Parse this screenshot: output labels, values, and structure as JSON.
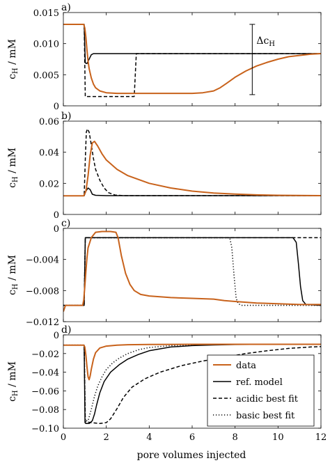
{
  "figure": {
    "xlabel": "pore volumes injected",
    "legend": {
      "entries": [
        {
          "label": "data",
          "style": "data"
        },
        {
          "label": "ref. model",
          "style": "solid"
        },
        {
          "label": "acidic best fit",
          "style": "dashed"
        },
        {
          "label": "basic best fit",
          "style": "dotted"
        }
      ]
    },
    "colors": {
      "data": "#c8621b",
      "model": "#000000"
    }
  },
  "chart_data": [
    {
      "panel": "a)",
      "type": "line",
      "ylabel": "c_H / mM",
      "xlim": [
        0,
        12
      ],
      "ylim": [
        0,
        0.015
      ],
      "yticks": [
        "0",
        "0.005",
        "0.010",
        "0.015"
      ],
      "annotation": "Δc_H",
      "annotation_x": 8.8,
      "annotation_range": [
        0.0018,
        0.0131
      ],
      "series": [
        {
          "style": "data",
          "x": [
            0,
            0.95,
            1.0,
            1.05,
            1.1,
            1.15,
            1.2,
            1.3,
            1.4,
            1.5,
            1.7,
            2,
            2.5,
            3,
            4,
            5,
            6,
            6.5,
            7,
            7.3,
            7.6,
            8,
            8.5,
            9,
            9.5,
            10,
            10.5,
            11,
            11.5,
            12
          ],
          "y": [
            0.0131,
            0.0131,
            0.0125,
            0.011,
            0.009,
            0.0072,
            0.006,
            0.0045,
            0.0035,
            0.0029,
            0.0024,
            0.0021,
            0.002,
            0.002,
            0.002,
            0.002,
            0.002,
            0.0021,
            0.0024,
            0.0029,
            0.0036,
            0.0046,
            0.0056,
            0.0064,
            0.007,
            0.0075,
            0.0079,
            0.0081,
            0.0083,
            0.0084
          ]
        },
        {
          "style": "solid",
          "x": [
            0,
            0.97,
            1.02,
            1.1,
            1.2,
            1.3,
            1.4,
            1.6,
            2,
            12
          ],
          "y": [
            0.0131,
            0.0131,
            0.0069,
            0.0068,
            0.0075,
            0.0082,
            0.0084,
            0.0084,
            0.0084,
            0.0084
          ]
        },
        {
          "style": "dashed",
          "x": [
            0,
            0.97,
            1.02,
            1.1,
            3.3,
            3.4,
            3.5,
            12
          ],
          "y": [
            0.0131,
            0.0131,
            0.0015,
            0.0015,
            0.0015,
            0.0084,
            0.0084,
            0.0084
          ]
        }
      ]
    },
    {
      "panel": "b)",
      "type": "line",
      "ylabel": "c_H / mM",
      "xlim": [
        0,
        12
      ],
      "ylim": [
        0,
        0.06
      ],
      "yticks": [
        "0",
        "0.02",
        "0.04",
        "0.06"
      ],
      "series": [
        {
          "style": "data",
          "x": [
            0,
            0.95,
            1.05,
            1.15,
            1.25,
            1.35,
            1.45,
            1.6,
            1.8,
            2,
            2.5,
            3,
            4,
            5,
            6,
            7,
            8,
            9,
            10,
            11,
            12
          ],
          "y": [
            0.012,
            0.012,
            0.015,
            0.025,
            0.038,
            0.046,
            0.047,
            0.044,
            0.039,
            0.035,
            0.029,
            0.025,
            0.02,
            0.017,
            0.015,
            0.0138,
            0.0131,
            0.0126,
            0.0123,
            0.0122,
            0.0121
          ]
        },
        {
          "style": "solid",
          "x": [
            0,
            0.97,
            1.05,
            1.15,
            1.25,
            1.35,
            1.5,
            2,
            12
          ],
          "y": [
            0.012,
            0.012,
            0.015,
            0.017,
            0.016,
            0.013,
            0.0123,
            0.0121,
            0.0121
          ]
        },
        {
          "style": "dashed",
          "x": [
            0,
            0.97,
            1.02,
            1.07,
            1.12,
            1.2,
            1.3,
            1.4,
            1.5,
            1.7,
            1.9,
            2.1,
            2.4,
            2.8,
            12
          ],
          "y": [
            0.012,
            0.012,
            0.035,
            0.053,
            0.055,
            0.053,
            0.045,
            0.036,
            0.029,
            0.022,
            0.017,
            0.014,
            0.0125,
            0.0121,
            0.0121
          ]
        }
      ]
    },
    {
      "panel": "c)",
      "type": "line",
      "ylabel": "c_H / mM",
      "xlim": [
        0,
        12
      ],
      "ylim": [
        -0.012,
        0
      ],
      "yticks": [
        "-0.012",
        "-0.008",
        "-0.004",
        "0"
      ],
      "series": [
        {
          "style": "data",
          "x": [
            0,
            0.1,
            0.5,
            0.9,
            0.95,
            1.0,
            1.05,
            1.1,
            1.15,
            1.3,
            1.5,
            1.8,
            2.2,
            2.45,
            2.55,
            2.7,
            2.9,
            3.1,
            3.3,
            3.6,
            4,
            4.5,
            5,
            6,
            7,
            7.5,
            8,
            8.5,
            9,
            10,
            11,
            12
          ],
          "y": [
            -0.0107,
            -0.0099,
            -0.0099,
            -0.0099,
            -0.0092,
            -0.0075,
            -0.0055,
            -0.0038,
            -0.0025,
            -0.0012,
            -0.0005,
            -0.0004,
            -0.0004,
            -0.0005,
            -0.0012,
            -0.0035,
            -0.0058,
            -0.0072,
            -0.008,
            -0.0085,
            -0.0087,
            -0.0088,
            -0.0089,
            -0.009,
            -0.0091,
            -0.0093,
            -0.0094,
            -0.0095,
            -0.0096,
            -0.0097,
            -0.0098,
            -0.0098
          ]
        },
        {
          "style": "solid",
          "x": [
            0,
            0.97,
            1.02,
            10.7,
            10.85,
            10.95,
            11.05,
            11.15,
            11.3,
            12
          ],
          "y": [
            -0.0099,
            -0.0099,
            -0.0012,
            -0.0012,
            -0.0018,
            -0.0045,
            -0.0075,
            -0.0093,
            -0.0098,
            -0.0099
          ]
        },
        {
          "style": "dashed",
          "x": [
            0,
            0.97,
            1.02,
            12
          ],
          "y": [
            -0.0099,
            -0.0099,
            -0.0012,
            -0.0012
          ]
        },
        {
          "style": "dotted",
          "x": [
            0,
            0.97,
            1.02,
            7.75,
            7.85,
            7.95,
            8.05,
            8.15,
            8.3,
            12
          ],
          "y": [
            -0.0099,
            -0.0099,
            -0.0012,
            -0.0012,
            -0.0025,
            -0.006,
            -0.009,
            -0.0097,
            -0.0099,
            -0.0099
          ]
        }
      ]
    },
    {
      "panel": "d)",
      "type": "line",
      "ylabel": "c_H / mM",
      "xlabel": "pore volumes injected",
      "xlim": [
        0,
        12
      ],
      "ylim": [
        -0.1,
        0
      ],
      "xticks": [
        "0",
        "2",
        "4",
        "6",
        "8",
        "10",
        "12"
      ],
      "yticks": [
        "-0.10",
        "-0.08",
        "-0.06",
        "-0.04",
        "-0.02",
        "0"
      ],
      "legend_position": "bottom-right",
      "series": [
        {
          "style": "data",
          "x": [
            0,
            0.95,
            1.0,
            1.05,
            1.1,
            1.15,
            1.2,
            1.25,
            1.3,
            1.4,
            1.5,
            1.7,
            2,
            2.5,
            3,
            4,
            6,
            8,
            10,
            12
          ],
          "y": [
            -0.011,
            -0.011,
            -0.013,
            -0.022,
            -0.034,
            -0.045,
            -0.048,
            -0.044,
            -0.037,
            -0.026,
            -0.019,
            -0.014,
            -0.012,
            -0.011,
            -0.0105,
            -0.0102,
            -0.0101,
            -0.0101,
            -0.0101,
            -0.0101
          ]
        },
        {
          "style": "solid",
          "x": [
            0,
            0.97,
            1.01,
            1.05,
            1.2,
            1.35,
            1.45,
            1.55,
            1.7,
            1.9,
            2.2,
            2.6,
            3,
            3.5,
            4,
            5,
            6,
            7,
            8,
            10,
            12
          ],
          "y": [
            -0.011,
            -0.011,
            -0.094,
            -0.095,
            -0.095,
            -0.092,
            -0.085,
            -0.075,
            -0.062,
            -0.05,
            -0.04,
            -0.032,
            -0.026,
            -0.021,
            -0.017,
            -0.013,
            -0.0115,
            -0.0108,
            -0.0104,
            -0.0101,
            -0.0101
          ]
        },
        {
          "style": "dashed",
          "x": [
            0,
            0.97,
            1.02,
            1.3,
            1.7,
            2,
            2.2,
            2.5,
            2.8,
            3.2,
            3.8,
            4.5,
            5.5,
            6.5,
            7.5,
            8.5,
            9.5,
            10.5,
            11.5,
            12
          ],
          "y": [
            -0.011,
            -0.011,
            -0.093,
            -0.094,
            -0.095,
            -0.094,
            -0.09,
            -0.079,
            -0.067,
            -0.056,
            -0.047,
            -0.04,
            -0.033,
            -0.028,
            -0.024,
            -0.02,
            -0.017,
            -0.0145,
            -0.013,
            -0.0125
          ]
        },
        {
          "style": "dotted",
          "x": [
            0,
            0.97,
            1.02,
            1.15,
            1.3,
            1.45,
            1.6,
            1.8,
            2,
            2.3,
            2.6,
            3,
            3.5,
            4,
            5,
            6,
            7,
            9,
            12
          ],
          "y": [
            -0.011,
            -0.011,
            -0.092,
            -0.092,
            -0.08,
            -0.066,
            -0.055,
            -0.045,
            -0.037,
            -0.03,
            -0.025,
            -0.02,
            -0.016,
            -0.0135,
            -0.0115,
            -0.0106,
            -0.0103,
            -0.0101,
            -0.0101
          ]
        }
      ]
    }
  ]
}
